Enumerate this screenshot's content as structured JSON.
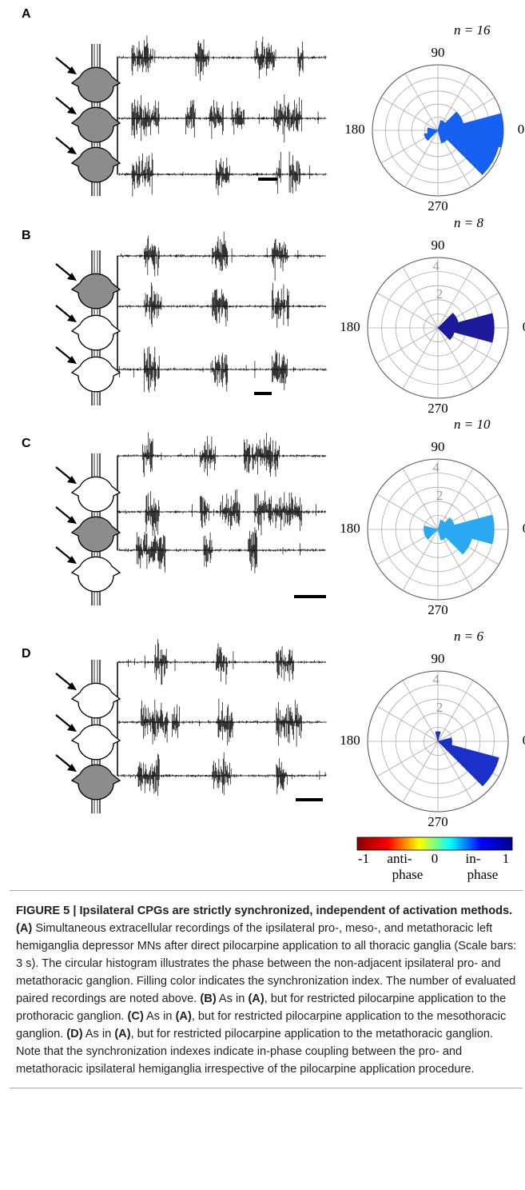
{
  "panels": [
    {
      "label": "A",
      "polar": {
        "type": "polar-bar",
        "n_label": "n = 16",
        "theta": [
          0,
          30,
          60,
          90,
          120,
          150,
          180,
          210,
          240,
          270,
          300,
          330
        ],
        "values": [
          5,
          2,
          0.8,
          0,
          0,
          0,
          0.8,
          1.1,
          0,
          0,
          1,
          4.8
        ],
        "color": "#1560f0",
        "rlim": [
          0,
          5
        ],
        "rticks": [],
        "theta_ticks": [
          0,
          90,
          180,
          270
        ]
      }
    },
    {
      "label": "B",
      "polar": {
        "type": "polar-bar",
        "n_label": "n = 8",
        "theta": [
          0,
          30,
          60,
          90,
          120,
          150,
          180,
          210,
          240,
          270,
          300,
          330
        ],
        "values": [
          4,
          1.5,
          0,
          0,
          0,
          0,
          0,
          0,
          0,
          0,
          0,
          1.2
        ],
        "color": "#1a1a9a",
        "rlim": [
          0,
          5
        ],
        "rticks": [
          2,
          4
        ],
        "theta_ticks": [
          0,
          90,
          180,
          270
        ]
      }
    },
    {
      "label": "C",
      "polar": {
        "type": "polar-bar",
        "n_label": "n = 10",
        "theta": [
          0,
          30,
          60,
          90,
          120,
          150,
          180,
          210,
          240,
          270,
          300,
          330
        ],
        "values": [
          4,
          1.2,
          0.7,
          0,
          0,
          0,
          1,
          1,
          0,
          0,
          0.8,
          2.5
        ],
        "color": "#2aa8f0",
        "rlim": [
          0,
          5
        ],
        "rticks": [
          2,
          4
        ],
        "theta_ticks": [
          0,
          90,
          180,
          270
        ]
      }
    },
    {
      "label": "D",
      "polar": {
        "type": "polar-bar",
        "n_label": "n = 6",
        "theta": [
          0,
          30,
          60,
          90,
          120,
          150,
          180,
          210,
          240,
          270,
          300,
          330
        ],
        "values": [
          1,
          0,
          0,
          0.7,
          0,
          0,
          0,
          0,
          0,
          0,
          0,
          4.5
        ],
        "color": "#1a30c8",
        "rlim": [
          0,
          5
        ],
        "rticks": [
          2,
          4
        ],
        "theta_ticks": [
          0,
          90,
          180,
          270
        ]
      }
    }
  ],
  "colorbar": {
    "clim": [
      -1,
      1
    ],
    "ticks": [
      -1,
      0,
      1
    ],
    "colormap": [
      "#8b0000",
      "#ff0000",
      "#ffff00",
      "#00ffff",
      "#0000ff",
      "#00008b"
    ],
    "anti_label": [
      "anti-",
      "phase"
    ],
    "in_label": [
      "in-",
      "phase"
    ]
  },
  "caption": [
    {
      "text": "FIGURE 5 | Ipsilateral CPGs are strictly synchronized, independent of activation methods. ",
      "bold": true
    },
    {
      "text": "(A)",
      "bold": true
    },
    {
      "text": " Simultaneous extracellular recordings of the ipsilateral pro-, meso-, and metathoracic left hemiganglia depressor MNs after direct pilocarpine application to all thoracic ganglia (Scale bars: 3 s). The circular histogram illustrates the phase between the non-adjacent ipsilateral pro- and metathoracic ganglion. Filling color indicates the synchronization index. The number of evaluated paired recordings are noted above. ",
      "bold": false
    },
    {
      "text": "(B)",
      "bold": true
    },
    {
      "text": " As in ",
      "bold": false
    },
    {
      "text": "(A)",
      "bold": true
    },
    {
      "text": ", but for restricted pilocarpine application to the prothoracic ganglion. ",
      "bold": false
    },
    {
      "text": "(C)",
      "bold": true
    },
    {
      "text": " As in ",
      "bold": false
    },
    {
      "text": "(A)",
      "bold": true
    },
    {
      "text": ", but for restricted pilocarpine application to the mesothoracic ganglion. ",
      "bold": false
    },
    {
      "text": "(D)",
      "bold": true
    },
    {
      "text": " As in ",
      "bold": false
    },
    {
      "text": "(A)",
      "bold": true
    },
    {
      "text": ", but for restricted pilocarpine application to the metathoracic ganglion. Note that the synchronization indexes indicate in-phase coupling between the pro- and metathoracic ipsilateral hemiganglia irrespective of the pilocarpine application procedure.",
      "bold": false
    }
  ]
}
